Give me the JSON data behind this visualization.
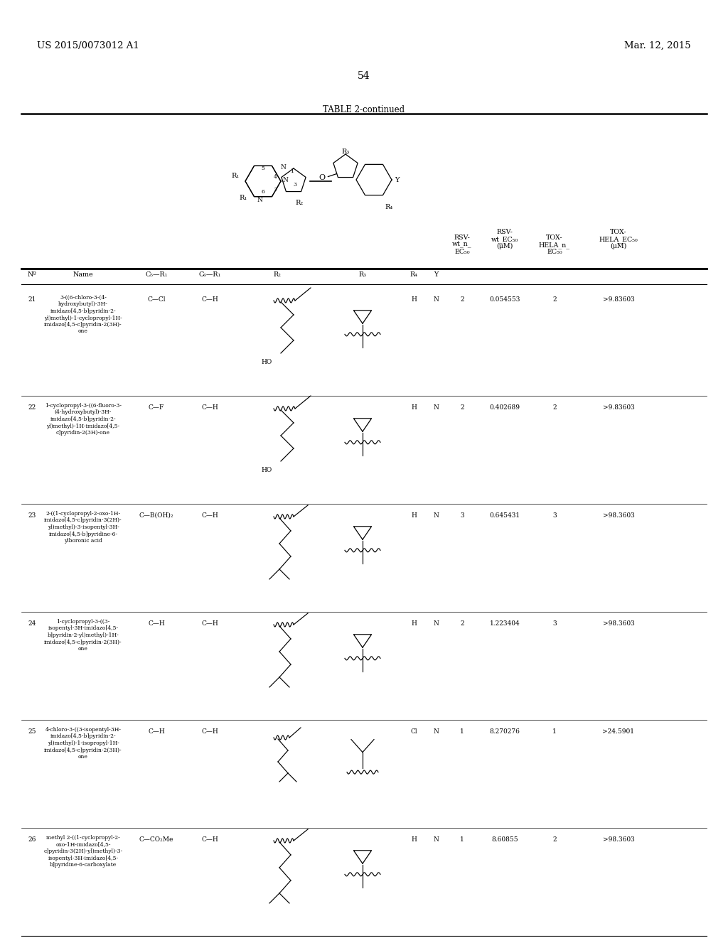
{
  "page_left": "US 2015/0073012 A1",
  "page_right": "Mar. 12, 2015",
  "page_number": "54",
  "table_title": "TABLE 2-continued",
  "rows": [
    {
      "no": "21",
      "name": "3-((6-chloro-3-(4-\nhydroxybutyl)-3H-\nimidazo[4,5-b]pyridin-2-\nyl)methyl)-1-cyclopropyl-1H-\nimidazo[4,5-c]pyridin-2(3H)-\none",
      "c5r1": "C—Cl",
      "c6r1": "C—H",
      "r2_type": "hydroxybutyl",
      "r3_type": "cyclopropyl_stem",
      "r4": "H",
      "y": "N",
      "rsv_n": "2",
      "rsv_ec50": "0.054553",
      "tox_n": "2",
      "tox_ec50": ">9.83603"
    },
    {
      "no": "22",
      "name": "1-cyclopropyl-3-((6-fluoro-3-\n(4-hydroxybutyl)-3H-\nimidazo[4,5-b]pyridin-2-\nyl)methyl)-1H-imidazo[4,5-\nc]pyridin-2(3H)-one",
      "c5r1": "C—F",
      "c6r1": "C—H",
      "r2_type": "hydroxybutyl",
      "r3_type": "cyclopropyl_stem",
      "r4": "H",
      "y": "N",
      "rsv_n": "2",
      "rsv_ec50": "0.402689",
      "tox_n": "2",
      "tox_ec50": ">9.83603"
    },
    {
      "no": "23",
      "name": "2-((1-cyclopropyl-2-oxo-1H-\nimidazo[4,5-c]pyridin-3(2H)-\nyl)methyl)-3-isopentyl-3H-\nimidazo[4,5-b]pyridine-6-\nylboronic acid",
      "c5r1": "C—B(OH)₂",
      "c6r1": "C—H",
      "r2_type": "isopentyl",
      "r3_type": "cyclopropyl_stem",
      "r4": "H",
      "y": "N",
      "rsv_n": "3",
      "rsv_ec50": "0.645431",
      "tox_n": "3",
      "tox_ec50": ">98.3603"
    },
    {
      "no": "24",
      "name": "1-cyclopropyl-3-((3-\nisopentyl-3H-imidazo[4,5-\nb]pyridin-2-yl)methyl)-1H-\nimidazo[4,5-c]pyridin-2(3H)-\none",
      "c5r1": "C—H",
      "c6r1": "C—H",
      "r2_type": "isopentyl",
      "r3_type": "cyclopropyl_stem",
      "r4": "H",
      "y": "N",
      "rsv_n": "2",
      "rsv_ec50": "1.223404",
      "tox_n": "3",
      "tox_ec50": ">98.3603"
    },
    {
      "no": "25",
      "name": "4-chloro-3-((3-isopentyl-3H-\nimidazo[4,5-b]pyridin-2-\nyl)methyl)-1-isopropyl-1H-\nimidazo[4,5-c]pyridin-2(3H)-\none",
      "c5r1": "C—H",
      "c6r1": "C—H",
      "r2_type": "isopentyl_short",
      "r3_type": "isopropyl_y",
      "r4": "Cl",
      "y": "N",
      "rsv_n": "1",
      "rsv_ec50": "8.270276",
      "tox_n": "1",
      "tox_ec50": ">24.5901"
    },
    {
      "no": "26",
      "name": "methyl 2-((1-cyclopropyl-2-\noxo-1H-imidazo[4,5-\nc]pyridin-3(2H)-yl)methyl)-3-\nisopentyl-3H-imidazo[4,5-\nb]pyridine-6-carboxylate",
      "c5r1": "C—CO₂Me",
      "c6r1": "C—H",
      "r2_type": "isopentyl",
      "r3_type": "cyclopropyl_stem",
      "r4": "H",
      "y": "N",
      "rsv_n": "1",
      "rsv_ec50": "8.60855",
      "tox_n": "2",
      "tox_ec50": ">98.3603"
    }
  ]
}
